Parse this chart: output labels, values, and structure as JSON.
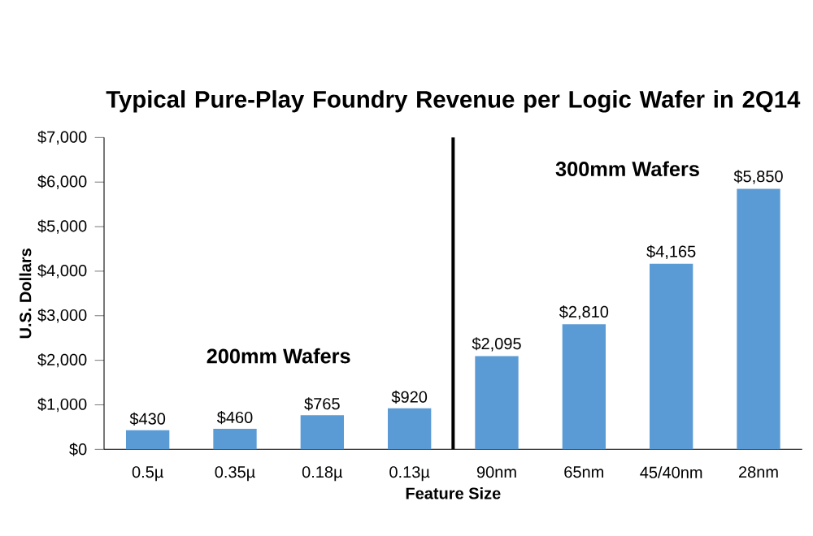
{
  "chart_data": {
    "type": "bar",
    "title": "Typical Pure-Play Foundry Revenue per Logic Wafer in 2Q14",
    "xlabel": "Feature Size",
    "ylabel": "U.S. Dollars",
    "categories": [
      "0.5µ",
      "0.35µ",
      "0.18µ",
      "0.13µ",
      "90nm",
      "65nm",
      "45/40nm",
      "28nm"
    ],
    "values": [
      430,
      460,
      765,
      920,
      2095,
      2810,
      4165,
      5850
    ],
    "value_labels": [
      "$430",
      "$460",
      "$765",
      "$920",
      "$2,095",
      "$2,810",
      "$4,165",
      "$5,850"
    ],
    "color": "#5b9bd5",
    "ylim": [
      0,
      7000
    ],
    "yticks": [
      {
        "value": 0,
        "label": "$0"
      },
      {
        "value": 1000,
        "label": "$1,000"
      },
      {
        "value": 2000,
        "label": "$2,000"
      },
      {
        "value": 3000,
        "label": "$3,000"
      },
      {
        "value": 4000,
        "label": "$4,000"
      },
      {
        "value": 5000,
        "label": "$5,000"
      },
      {
        "value": 6000,
        "label": "$6,000"
      },
      {
        "value": 7000,
        "label": "$7,000"
      }
    ],
    "annotations": [
      "200mm Wafers",
      "300mm Wafers"
    ]
  }
}
